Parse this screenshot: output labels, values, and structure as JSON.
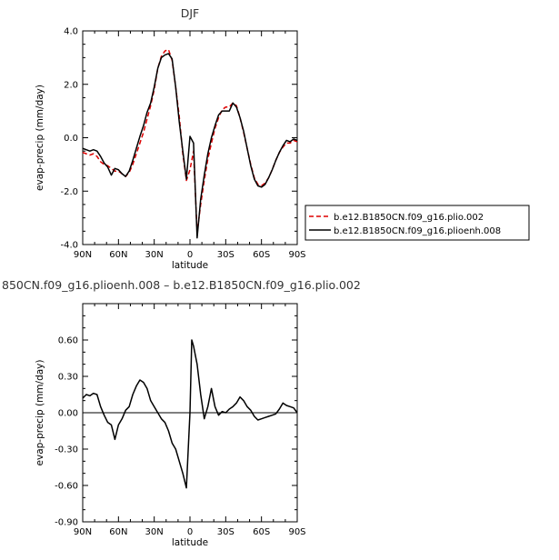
{
  "chart_data": [
    {
      "type": "line",
      "title": "DJF",
      "xlabel": "latitude",
      "ylabel": "evap-precip (mm/day)",
      "xlim": [
        90,
        -90
      ],
      "ylim": [
        -4.0,
        4.0
      ],
      "x_ticks": [
        90,
        60,
        30,
        0,
        -30,
        -60,
        -90
      ],
      "x_tick_labels": [
        "90N",
        "60N",
        "30N",
        "0",
        "30S",
        "60S",
        "90S"
      ],
      "y_ticks": [
        -4.0,
        -2.0,
        0.0,
        2.0,
        4.0
      ],
      "y_tick_labels": [
        "-4.0",
        "-2.0",
        "0.0",
        "2.0",
        "4.0"
      ],
      "legend_position": "right",
      "grid": false,
      "series": [
        {
          "name": "b.e12.B1850CN.f09_g16.plio.002",
          "color": "#dd0000",
          "dash": "dashed",
          "x": [
            90,
            87,
            84,
            81,
            78,
            75,
            72,
            69,
            66,
            63,
            60,
            57,
            54,
            51,
            48,
            45,
            42,
            39,
            36,
            33,
            30,
            27,
            24,
            21,
            18,
            15,
            12,
            9,
            6,
            3,
            0,
            -3,
            -6,
            -9,
            -12,
            -15,
            -18,
            -21,
            -24,
            -27,
            -30,
            -33,
            -36,
            -39,
            -42,
            -45,
            -48,
            -51,
            -54,
            -57,
            -60,
            -63,
            -66,
            -69,
            -72,
            -75,
            -78,
            -81,
            -84,
            -87,
            -90
          ],
          "y": [
            -0.55,
            -0.6,
            -0.65,
            -0.6,
            -0.7,
            -0.9,
            -1.0,
            -1.05,
            -1.15,
            -1.25,
            -1.25,
            -1.35,
            -1.45,
            -1.3,
            -1.0,
            -0.6,
            -0.2,
            0.2,
            0.7,
            1.2,
            1.8,
            2.6,
            3.05,
            3.25,
            3.3,
            2.9,
            1.9,
            0.8,
            -0.6,
            -1.6,
            -1.2,
            -0.5,
            -3.55,
            -2.5,
            -1.6,
            -0.8,
            -0.2,
            0.35,
            0.75,
            1.05,
            1.15,
            1.15,
            1.3,
            1.2,
            0.75,
            0.2,
            -0.4,
            -1.0,
            -1.5,
            -1.75,
            -1.8,
            -1.7,
            -1.5,
            -1.2,
            -0.85,
            -0.55,
            -0.35,
            -0.2,
            -0.2,
            -0.1,
            -0.15
          ]
        },
        {
          "name": "b.e12.B1850CN.f09_g16.plioenh.008",
          "color": "#000000",
          "dash": "solid",
          "x": [
            90,
            87,
            84,
            81,
            78,
            75,
            72,
            69,
            66,
            63,
            60,
            57,
            54,
            51,
            48,
            45,
            42,
            39,
            36,
            33,
            30,
            27,
            24,
            21,
            18,
            15,
            12,
            9,
            6,
            3,
            0,
            -3,
            -6,
            -9,
            -12,
            -15,
            -18,
            -21,
            -24,
            -27,
            -30,
            -33,
            -36,
            -39,
            -42,
            -45,
            -48,
            -51,
            -54,
            -57,
            -60,
            -63,
            -66,
            -69,
            -72,
            -75,
            -78,
            -81,
            -84,
            -87,
            -90
          ],
          "y": [
            -0.4,
            -0.45,
            -0.5,
            -0.45,
            -0.5,
            -0.7,
            -0.95,
            -1.1,
            -1.4,
            -1.15,
            -1.2,
            -1.35,
            -1.45,
            -1.25,
            -0.85,
            -0.4,
            0.05,
            0.45,
            0.95,
            1.3,
            1.9,
            2.6,
            3.0,
            3.1,
            3.15,
            2.95,
            1.9,
            0.6,
            -0.5,
            -1.55,
            0.05,
            -0.2,
            -3.75,
            -2.3,
            -1.4,
            -0.6,
            0.0,
            0.45,
            0.85,
            1.0,
            1.0,
            1.0,
            1.3,
            1.15,
            0.75,
            0.25,
            -0.4,
            -1.05,
            -1.55,
            -1.8,
            -1.85,
            -1.75,
            -1.5,
            -1.2,
            -0.85,
            -0.55,
            -0.3,
            -0.1,
            -0.15,
            -0.05,
            -0.1
          ]
        }
      ]
    },
    {
      "type": "line",
      "title": "850CN.f09_g16.plioenh.008 – b.e12.B1850CN.f09_g16.plio.002",
      "xlabel": "latitude",
      "ylabel": "evap-precip (mm/day)",
      "xlim": [
        90,
        -90
      ],
      "ylim": [
        -0.9,
        0.9
      ],
      "x_ticks": [
        90,
        60,
        30,
        0,
        -30,
        -60,
        -90
      ],
      "x_tick_labels": [
        "90N",
        "60N",
        "30N",
        "0",
        "30S",
        "60S",
        "90S"
      ],
      "y_ticks": [
        -0.9,
        -0.6,
        -0.3,
        0.0,
        0.3,
        0.6
      ],
      "y_tick_labels": [
        "-0.90",
        "-0.60",
        "-0.30",
        "0.00",
        "0.30",
        "0.60"
      ],
      "grid": false,
      "series": [
        {
          "color": "#000000",
          "dash": "solid",
          "x": [
            90,
            87,
            84,
            81,
            78,
            75,
            72,
            69,
            66,
            63,
            60,
            57,
            54,
            51,
            48,
            45,
            42,
            39,
            36,
            33,
            30,
            27,
            24,
            21,
            18,
            15,
            12,
            9,
            6,
            3,
            0,
            -1.5,
            -3,
            -6,
            -9,
            -12,
            -15,
            -18,
            -21,
            -24,
            -27,
            -30,
            -33,
            -36,
            -39,
            -42,
            -45,
            -48,
            -51,
            -54,
            -57,
            -60,
            -63,
            -66,
            -69,
            -72,
            -75,
            -78,
            -81,
            -84,
            -87,
            -90
          ],
          "y": [
            0.12,
            0.15,
            0.14,
            0.16,
            0.15,
            0.05,
            -0.02,
            -0.08,
            -0.1,
            -0.22,
            -0.1,
            -0.05,
            0.02,
            0.05,
            0.15,
            0.22,
            0.27,
            0.25,
            0.2,
            0.1,
            0.05,
            0.0,
            -0.05,
            -0.08,
            -0.15,
            -0.25,
            -0.3,
            -0.4,
            -0.5,
            -0.62,
            0.0,
            0.6,
            0.55,
            0.4,
            0.15,
            -0.05,
            0.05,
            0.2,
            0.05,
            -0.02,
            0.01,
            0.0,
            0.03,
            0.05,
            0.08,
            0.13,
            0.1,
            0.05,
            0.02,
            -0.03,
            -0.06,
            -0.05,
            -0.04,
            -0.03,
            -0.02,
            -0.01,
            0.03,
            0.08,
            0.06,
            0.05,
            0.04,
            0.0
          ]
        }
      ]
    }
  ]
}
